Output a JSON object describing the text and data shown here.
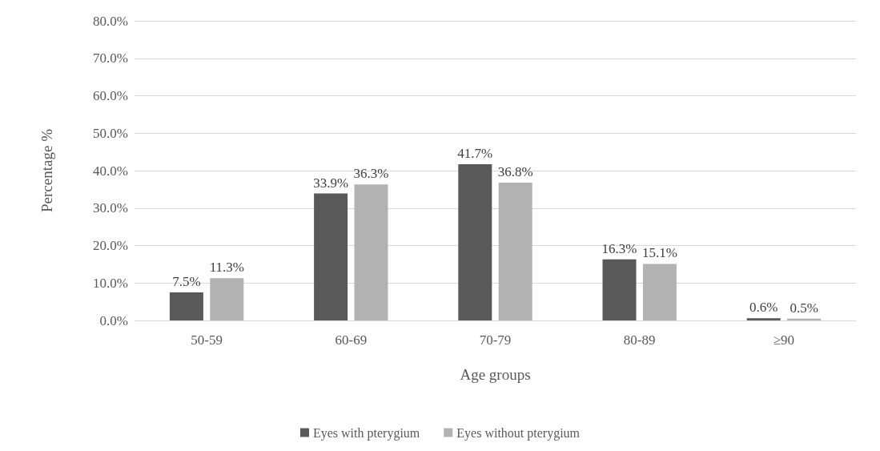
{
  "chart_data": {
    "type": "bar",
    "xlabel": "Age groups",
    "ylabel": "Percentage %",
    "categories": [
      "50-59",
      "60-69",
      "70-79",
      "80-89",
      "≥90"
    ],
    "series": [
      {
        "name": "Eyes with pterygium",
        "color": "#595959",
        "values": [
          7.5,
          33.9,
          41.7,
          16.3,
          0.6
        ],
        "value_labels": [
          "7.5%",
          "33.9%",
          "41.7%",
          "16.3%",
          "0.6%"
        ]
      },
      {
        "name": "Eyes without pterygium",
        "color": "#b2b2b2",
        "values": [
          11.3,
          36.3,
          36.8,
          15.1,
          0.5
        ],
        "value_labels": [
          "11.3%",
          "36.3%",
          "36.8%",
          "15.1%",
          "0.5%"
        ]
      }
    ],
    "ylim": [
      0,
      80
    ],
    "yticks": [
      {
        "value": 0,
        "label": "0.0%"
      },
      {
        "value": 10,
        "label": "10.0%"
      },
      {
        "value": 20,
        "label": "20.0%"
      },
      {
        "value": 30,
        "label": "30.0%"
      },
      {
        "value": 40,
        "label": "40.0%"
      },
      {
        "value": 50,
        "label": "50.0%"
      },
      {
        "value": 60,
        "label": "60.0%"
      },
      {
        "value": 70,
        "label": "70.0%"
      },
      {
        "value": 80,
        "label": "80.0%"
      }
    ],
    "grid": "y",
    "legend": "bottom"
  }
}
